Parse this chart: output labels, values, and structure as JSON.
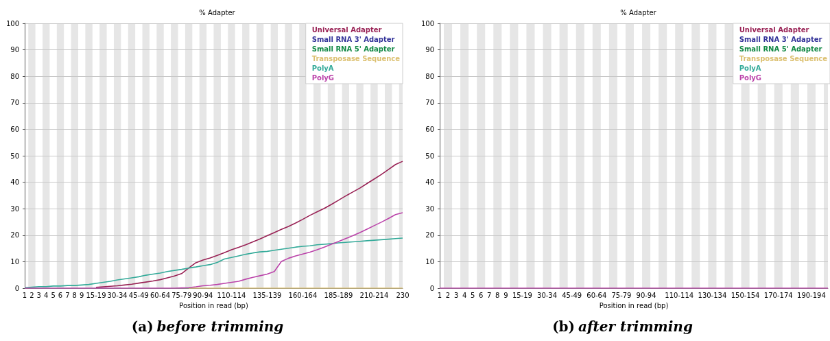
{
  "chart_data": [
    {
      "type": "line",
      "title": "% Adapter",
      "subtitle": "(a) before trimming",
      "xlabel": "Position in read (bp)",
      "categories": [
        "1",
        "2",
        "3",
        "4",
        "5",
        "6",
        "7",
        "8",
        "9",
        null,
        "15-19",
        null,
        null,
        "30-34",
        null,
        null,
        "45-49",
        null,
        null,
        "60-64",
        null,
        null,
        "75-79",
        null,
        null,
        "90-94",
        null,
        null,
        null,
        "110-114",
        null,
        null,
        null,
        null,
        "135-139",
        null,
        null,
        null,
        null,
        "160-164",
        null,
        null,
        null,
        null,
        "185-189",
        null,
        null,
        null,
        null,
        "210-214",
        null,
        null,
        null,
        "230"
      ],
      "series": [
        {
          "name": "Universal Adapter",
          "color": "#992255",
          "values": [
            null,
            null,
            null,
            null,
            null,
            null,
            null,
            null,
            null,
            null,
            0.3,
            0.5,
            0.7,
            0.9,
            1.2,
            1.5,
            1.9,
            2.3,
            2.7,
            3.2,
            3.9,
            4.6,
            5.5,
            7.6,
            9.6,
            10.6,
            11.4,
            12.4,
            13.4,
            14.5,
            15.4,
            16.4,
            17.5,
            18.6,
            19.8,
            21.0,
            22.2,
            23.3,
            24.6,
            26.0,
            27.5,
            28.8,
            30.1,
            31.6,
            33.2,
            34.8,
            36.3,
            37.8,
            39.5,
            41.2,
            42.9,
            44.8,
            46.7,
            47.9
          ]
        },
        {
          "name": "Small RNA 3' Adapter",
          "color": "#333399",
          "values": [
            null,
            null,
            null,
            null,
            null,
            null,
            null,
            null,
            null,
            null,
            null,
            null,
            null,
            null,
            null,
            null,
            null,
            null,
            null,
            null,
            null,
            null,
            null,
            null,
            null,
            null,
            null,
            null,
            null,
            null,
            null,
            null,
            null,
            null,
            null,
            null,
            null,
            null,
            null,
            null,
            null,
            null,
            null,
            null,
            null,
            null,
            null,
            null,
            null,
            null,
            null,
            null,
            null,
            null
          ]
        },
        {
          "name": "Small RNA 5' Adapter",
          "color": "#118844",
          "values": [
            null,
            null,
            null,
            null,
            null,
            null,
            null,
            null,
            null,
            null,
            null,
            null,
            null,
            null,
            null,
            null,
            null,
            null,
            null,
            null,
            null,
            null,
            null,
            null,
            null,
            null,
            null,
            null,
            null,
            null,
            null,
            null,
            null,
            null,
            null,
            null,
            null,
            null,
            null,
            null,
            null,
            null,
            null,
            null,
            null,
            null,
            null,
            null,
            null,
            null,
            null,
            null,
            null,
            null
          ]
        },
        {
          "name": "Transposase Sequence",
          "color": "#dcc070",
          "values": [
            null,
            null,
            null,
            null,
            null,
            null,
            null,
            null,
            null,
            null,
            null,
            null,
            null,
            null,
            null,
            null,
            null,
            null,
            null,
            null,
            null,
            null,
            null,
            0,
            0,
            0,
            0,
            0,
            0,
            0,
            0,
            0,
            0,
            0,
            0,
            0,
            0,
            0,
            0,
            0,
            0,
            0,
            0,
            0,
            0,
            0,
            0,
            0,
            0,
            0,
            0,
            0,
            0,
            0
          ]
        },
        {
          "name": "PolyA",
          "color": "#33aa99",
          "values": [
            0.2,
            0.4,
            0.6,
            0.6,
            0.8,
            0.8,
            1.0,
            1.0,
            1.2,
            1.4,
            1.8,
            2.2,
            2.6,
            3.1,
            3.5,
            3.9,
            4.3,
            4.9,
            5.3,
            5.7,
            6.3,
            6.7,
            7.1,
            7.6,
            8.0,
            8.5,
            8.9,
            9.7,
            11.0,
            11.6,
            12.2,
            12.8,
            13.3,
            13.7,
            13.9,
            14.3,
            14.7,
            15.1,
            15.5,
            15.8,
            16.0,
            16.4,
            16.6,
            16.8,
            17.1,
            17.3,
            17.5,
            17.7,
            17.9,
            18.1,
            18.3,
            18.5,
            18.7,
            18.9
          ]
        },
        {
          "name": "PolyG",
          "color": "#bb44aa",
          "values": [
            0,
            0,
            0,
            0,
            0,
            0,
            0,
            0,
            0,
            0,
            0,
            0,
            0,
            0,
            0,
            0,
            0,
            0,
            0,
            0,
            0,
            0,
            0.1,
            0.2,
            0.5,
            0.9,
            1.1,
            1.4,
            1.8,
            2.2,
            2.6,
            3.4,
            4.1,
            4.7,
            5.3,
            6.3,
            10.1,
            11.3,
            12.2,
            12.9,
            13.6,
            14.5,
            15.5,
            16.6,
            17.6,
            18.7,
            19.8,
            21.0,
            22.3,
            23.6,
            24.9,
            26.3,
            27.8,
            28.5
          ]
        }
      ],
      "ylim": [
        0,
        100
      ],
      "yticks": [
        0,
        10,
        20,
        30,
        40,
        50,
        60,
        70,
        80,
        90,
        100
      ],
      "grid": "y",
      "legend": "top right",
      "marker": "none",
      "line_style": "solid"
    },
    {
      "type": "line",
      "title": "% Adapter",
      "subtitle": "(b) after trimming",
      "xlabel": "Position in read (bp)",
      "categories": [
        "1",
        "2",
        "3",
        "4",
        "5",
        "6",
        "7",
        "8",
        "9",
        null,
        "15-19",
        null,
        null,
        "30-34",
        null,
        null,
        "45-49",
        null,
        null,
        "60-64",
        null,
        null,
        "75-79",
        null,
        null,
        "90-94",
        null,
        null,
        null,
        "110-114",
        null,
        null,
        null,
        "130-134",
        null,
        null,
        null,
        "150-154",
        null,
        null,
        null,
        "170-174",
        null,
        null,
        null,
        "190-194",
        null,
        null
      ],
      "series": [
        {
          "name": "Universal Adapter",
          "color": "#992255",
          "values": [
            null,
            null,
            null,
            null,
            null,
            null,
            null,
            null,
            null,
            null,
            null,
            null,
            null,
            null,
            null,
            null,
            null,
            null,
            null,
            null,
            null,
            null,
            null,
            null,
            null,
            null,
            null,
            null,
            null,
            null,
            null,
            null,
            null,
            null,
            null,
            null,
            null,
            null,
            null,
            null,
            null,
            null,
            null,
            null,
            null,
            null,
            null,
            null
          ]
        },
        {
          "name": "Small RNA 3' Adapter",
          "color": "#333399",
          "values": [
            null,
            null,
            null,
            null,
            null,
            null,
            null,
            null,
            null,
            null,
            null,
            null,
            null,
            null,
            null,
            null,
            null,
            null,
            null,
            null,
            null,
            null,
            null,
            null,
            null,
            null,
            null,
            null,
            null,
            null,
            null,
            null,
            null,
            null,
            null,
            null,
            null,
            null,
            null,
            null,
            null,
            null,
            null,
            null,
            null,
            null,
            null,
            null
          ]
        },
        {
          "name": "Small RNA 5' Adapter",
          "color": "#118844",
          "values": [
            null,
            null,
            null,
            null,
            null,
            null,
            null,
            null,
            null,
            null,
            null,
            null,
            null,
            null,
            null,
            null,
            null,
            null,
            null,
            null,
            null,
            null,
            null,
            null,
            null,
            null,
            null,
            null,
            null,
            null,
            null,
            null,
            null,
            null,
            null,
            null,
            null,
            null,
            null,
            null,
            null,
            null,
            null,
            null,
            null,
            null,
            null,
            null
          ]
        },
        {
          "name": "Transposase Sequence",
          "color": "#dcc070",
          "values": [
            null,
            null,
            null,
            null,
            null,
            null,
            null,
            null,
            null,
            null,
            null,
            null,
            null,
            null,
            null,
            null,
            null,
            null,
            null,
            null,
            null,
            null,
            null,
            null,
            null,
            null,
            null,
            null,
            null,
            null,
            null,
            null,
            null,
            null,
            null,
            null,
            null,
            null,
            null,
            null,
            null,
            null,
            null,
            null,
            null,
            null,
            null,
            null
          ]
        },
        {
          "name": "PolyA",
          "color": "#33aa99",
          "values": [
            null,
            null,
            null,
            null,
            null,
            null,
            null,
            null,
            null,
            null,
            null,
            null,
            null,
            null,
            null,
            null,
            null,
            null,
            null,
            null,
            null,
            null,
            null,
            null,
            null,
            null,
            null,
            null,
            null,
            null,
            null,
            null,
            null,
            null,
            null,
            null,
            null,
            null,
            null,
            null,
            null,
            null,
            null,
            null,
            null,
            null,
            null,
            null
          ]
        },
        {
          "name": "PolyG",
          "color": "#bb44aa",
          "values": [
            0,
            0,
            0,
            0,
            0,
            0,
            0,
            0,
            0,
            0,
            0,
            0,
            0,
            0,
            0,
            0,
            0,
            0,
            0,
            0,
            0,
            0,
            0,
            0,
            0,
            0,
            0,
            0,
            0,
            0,
            0,
            0,
            0,
            0,
            0,
            0,
            0,
            0,
            0,
            0,
            0,
            0,
            0,
            0,
            0,
            0,
            0,
            0
          ]
        }
      ],
      "ylim": [
        0,
        100
      ],
      "yticks": [
        0,
        10,
        20,
        30,
        40,
        50,
        60,
        70,
        80,
        90,
        100
      ],
      "grid": "y",
      "legend": "top right",
      "marker": "none",
      "line_style": "solid"
    }
  ]
}
